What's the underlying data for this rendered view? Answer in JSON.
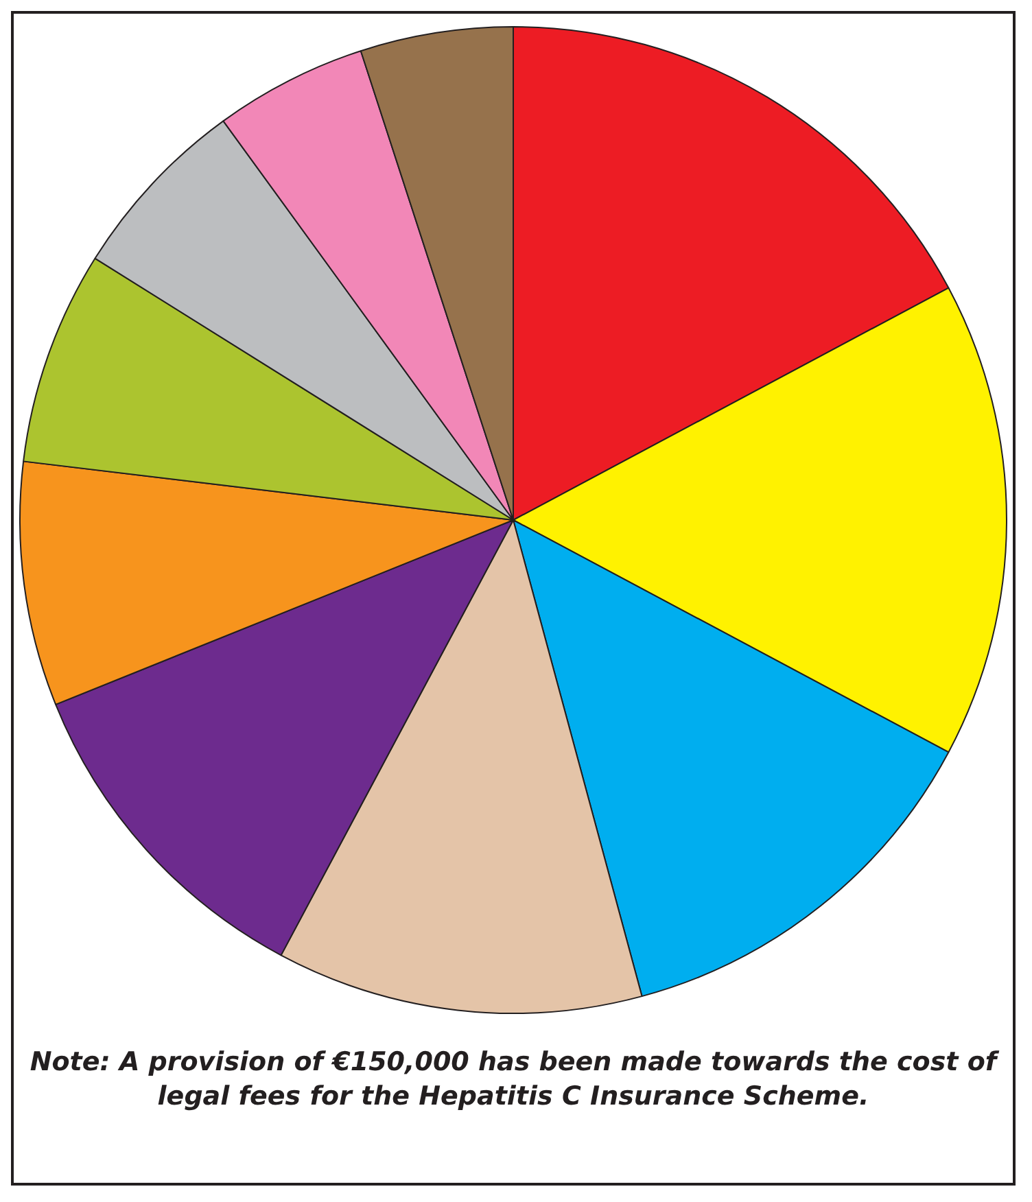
{
  "chart_data": {
    "type": "pie",
    "categories": [
      null,
      null,
      null,
      null,
      null,
      null,
      null,
      null,
      null,
      null
    ],
    "values": [
      17.2,
      15.6,
      13.0,
      12.0,
      11.1,
      8.0,
      7.0,
      6.1,
      5.0,
      5.0
    ],
    "colors": [
      "#ed1c24",
      "#fff200",
      "#00aeef",
      "#e4c4a8",
      "#6d2b8e",
      "#f7941d",
      "#acc42f",
      "#bcbec0",
      "#f287b7",
      "#96724c"
    ],
    "annotations": [
      "Note: A provision of €150,000 has been made towards the cost of legal fees for the Hepatitis C Insurance Scheme."
    ]
  }
}
